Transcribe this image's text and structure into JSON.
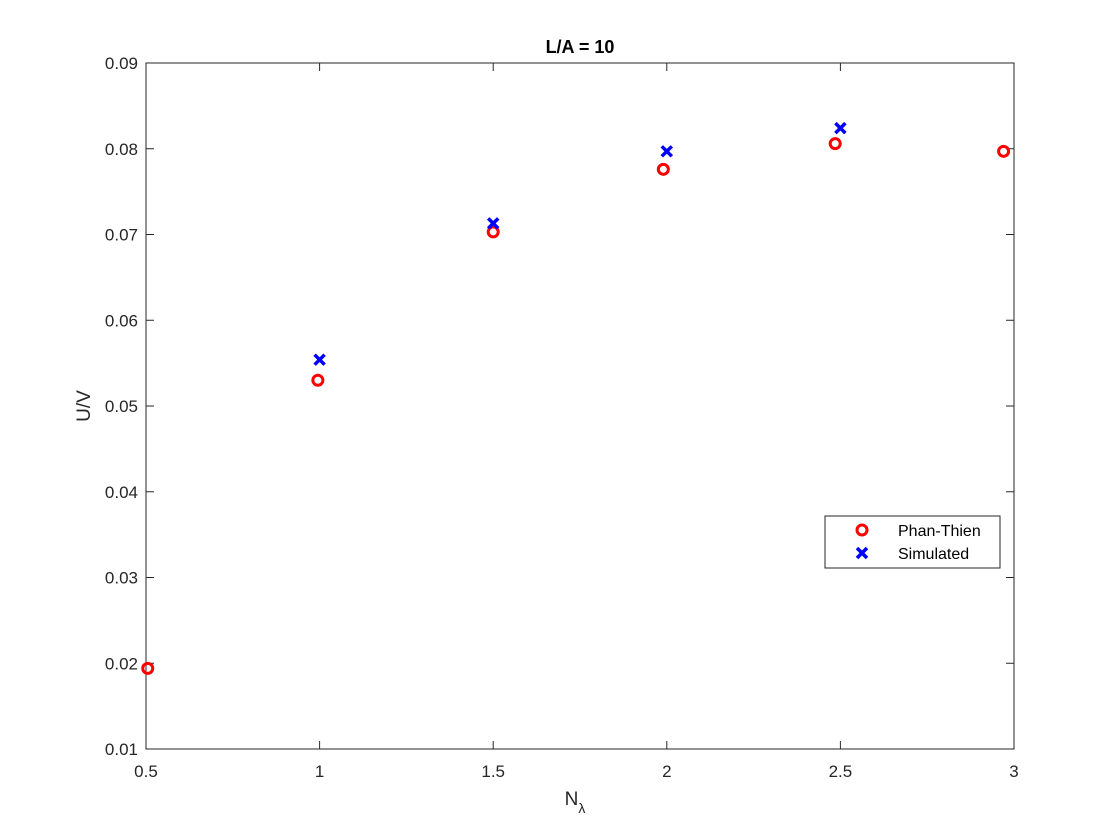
{
  "chart_data": {
    "type": "scatter",
    "title": "L/A = 10",
    "xlabel": "N",
    "xlabel_subscript": "λ",
    "ylabel": "U/V",
    "xlim": [
      0.5,
      3
    ],
    "ylim": [
      0.01,
      0.09
    ],
    "xticks": [
      "0.5",
      "1",
      "1.5",
      "2",
      "2.5",
      "3"
    ],
    "yticks": [
      "0.01",
      "0.02",
      "0.03",
      "0.04",
      "0.05",
      "0.06",
      "0.07",
      "0.08",
      "0.09"
    ],
    "grid": false,
    "legend_position": "right",
    "series": [
      {
        "name": "Phan-Thien",
        "marker": "o",
        "color": "#ff0000",
        "x": [
          0.505,
          0.995,
          1.5,
          1.99,
          2.485,
          2.97
        ],
        "y": [
          0.0194,
          0.053,
          0.0703,
          0.0776,
          0.0806,
          0.0797
        ]
      },
      {
        "name": "Simulated",
        "marker": "x",
        "color": "#0000ff",
        "x": [
          1.0,
          1.5,
          2.0,
          2.5
        ],
        "y": [
          0.0554,
          0.0713,
          0.0797,
          0.0824
        ]
      }
    ]
  }
}
